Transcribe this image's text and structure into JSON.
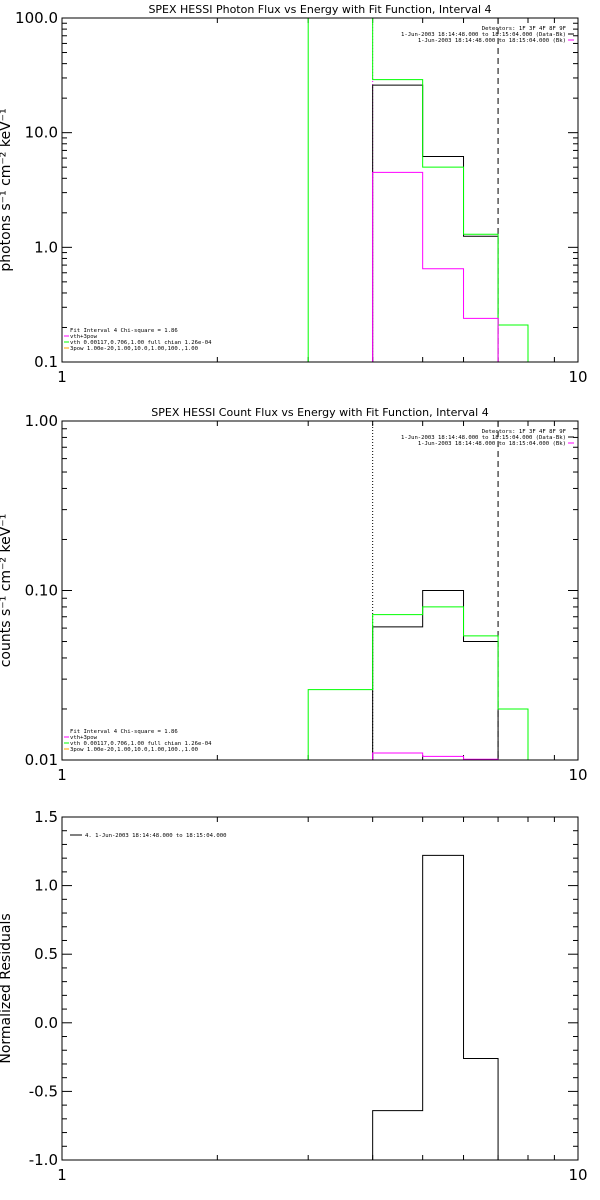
{
  "colors": {
    "black": "#000000",
    "green": "#00ff00",
    "magenta": "#ff00ff"
  },
  "chart_data": [
    {
      "type": "line",
      "step": true,
      "title": "SPEX HESSI Photon Flux vs Energy with Fit Function, Interval 4",
      "ylabel": "photons s⁻¹ cm⁻² keV⁻¹",
      "xscale": "log",
      "yscale": "log",
      "xlim": [
        1,
        10
      ],
      "ylim": [
        0.1,
        100
      ],
      "xticklabels": [
        "1",
        "10"
      ],
      "yticks": [
        0.1,
        1,
        10,
        100
      ],
      "yticklabels": [
        "0.1",
        "1.0",
        "10.0",
        "100.0"
      ],
      "vlines": [
        {
          "x": 4,
          "color": "#ff00ff",
          "style": "dotted"
        },
        {
          "x": 7,
          "color": "#000000",
          "style": "dashed"
        }
      ],
      "series": [
        {
          "color": "#000000",
          "edges": [
            4,
            5,
            6,
            7
          ],
          "values": [
            26,
            6.2,
            1.25
          ]
        },
        {
          "color": "#00ff00",
          "edges": [
            3,
            4,
            5,
            6,
            7,
            8
          ],
          "values": [
            110,
            29,
            5,
            1.3,
            0.21
          ]
        },
        {
          "color": "#ff00ff",
          "edges": [
            4,
            5,
            6,
            7
          ],
          "values": [
            4.5,
            0.65,
            0.24
          ]
        }
      ],
      "legend_left": {
        "lines": [
          {
            "text": "Fit Interval  4    Chi-square = 1.86",
            "color": "#000000"
          },
          {
            "text": "vth+3pow",
            "color": "#ff00ff"
          },
          {
            "text": "vth 0.00117,0.706,1.00   full chian 1.26e-04",
            "color": "#00ff00"
          },
          {
            "text": "3pow 1.00e-20,1.00,10.0,1.00,100.,1.00",
            "color": "#ffa500"
          }
        ]
      },
      "legend_right": {
        "lines": [
          {
            "text": "Detectors: 1F 3F 4F 8F 9F",
            "color": "#000000"
          },
          {
            "text": "1-Jun-2003 18:14:48.000 to 18:15:04.000 (Data-Bk)",
            "color": "#000000"
          },
          {
            "text": "1-Jun-2003 18:14:48.000 to 18:15:04.000 (Bk)",
            "color": "#ff00ff"
          }
        ]
      }
    },
    {
      "type": "line",
      "step": true,
      "title": "SPEX HESSI Count Flux vs Energy with Fit Function, Interval 4",
      "ylabel": "counts s⁻¹ cm⁻² keV⁻¹",
      "xscale": "log",
      "yscale": "log",
      "xlim": [
        1,
        10
      ],
      "ylim": [
        0.01,
        1
      ],
      "xticklabels": [
        "1",
        "10"
      ],
      "yticks": [
        0.01,
        0.1,
        1
      ],
      "yticklabels": [
        "0.01",
        "0.10",
        "1.00"
      ],
      "vlines": [
        {
          "x": 4,
          "color": "#000000",
          "style": "dotted"
        },
        {
          "x": 7,
          "color": "#000000",
          "style": "dashed"
        }
      ],
      "series": [
        {
          "color": "#000000",
          "edges": [
            3,
            4,
            5,
            6,
            7,
            8
          ],
          "values": [
            0.008,
            0.061,
            0.1,
            0.05,
            0.008
          ]
        },
        {
          "color": "#00ff00",
          "edges": [
            3,
            4,
            5,
            6,
            7,
            8
          ],
          "values": [
            0.026,
            0.072,
            0.08,
            0.054,
            0.02
          ]
        },
        {
          "color": "#ff00ff",
          "edges": [
            4,
            5,
            6,
            7
          ],
          "values": [
            0.011,
            0.0105,
            0.0101
          ]
        }
      ],
      "legend_left": {
        "lines": [
          {
            "text": "Fit Interval  4    Chi-square = 1.86",
            "color": "#000000"
          },
          {
            "text": "vth+3pow",
            "color": "#ff00ff"
          },
          {
            "text": "vth 0.00117,0.706,1.00   full chian 1.26e-04",
            "color": "#00ff00"
          },
          {
            "text": "3pow 1.00e-20,1.00,10.0,1.00,100.,1.00",
            "color": "#ffa500"
          }
        ]
      },
      "legend_right": {
        "lines": [
          {
            "text": "Detectors: 1F 3F 4F 8F 9F",
            "color": "#000000"
          },
          {
            "text": "1-Jun-2003 18:14:48.000 to 18:15:04.000 (Data-Bk)",
            "color": "#000000"
          },
          {
            "text": "1-Jun-2003 18:14:48.000 to 18:15:04.000 (Bk)",
            "color": "#ff00ff"
          }
        ]
      }
    },
    {
      "type": "line",
      "step": true,
      "title": "",
      "ylabel": "Normalized Residuals",
      "xscale": "log",
      "yscale": "linear",
      "xlim": [
        1,
        10
      ],
      "ylim": [
        -1,
        1.5
      ],
      "xticklabels": [
        "1",
        "10"
      ],
      "yticks": [
        -1,
        -0.5,
        0,
        0.5,
        1,
        1.5
      ],
      "yticklabels": [
        "-1.0",
        "-0.5",
        "0.0",
        "0.5",
        "1.0",
        "1.5"
      ],
      "vlines": [],
      "series": [
        {
          "color": "#000000",
          "edges": [
            4,
            5,
            6,
            7
          ],
          "values": [
            -0.64,
            1.22,
            -0.26
          ],
          "drop_to_min": true
        }
      ],
      "legend_left": {
        "lines": [
          {
            "text": "4.  1-Jun-2003 18:14:48.000 to 18:15:04.000",
            "color": "#000000",
            "swatch": true
          }
        ]
      },
      "legend_right": {
        "lines": []
      }
    }
  ]
}
